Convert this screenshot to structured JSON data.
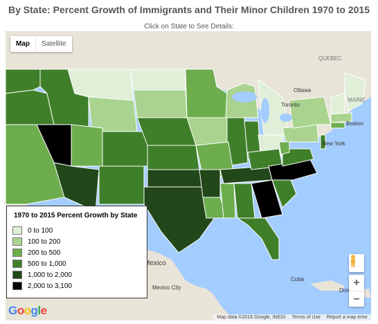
{
  "title": "By State: Percent Growth of Immigrants and Their Minor Children 1970 to 2015",
  "subtitle": "Click on State to See Details:",
  "map_type": {
    "map_label": "Map",
    "satellite_label": "Satellite"
  },
  "legend": {
    "title": "1970 to 2015 Percent Growth by State",
    "items": [
      {
        "label": "0 to 100",
        "color": "#e0efd8"
      },
      {
        "label": "100 to 200",
        "color": "#a9d38e"
      },
      {
        "label": "200 to 500",
        "color": "#6dad4e"
      },
      {
        "label": "500 to 1,000",
        "color": "#3f7f2a"
      },
      {
        "label": "1,000 to 2,000",
        "color": "#22471a"
      },
      {
        "label": "2,000 to 3,100",
        "color": "#000000"
      }
    ]
  },
  "colors": {
    "water": "#a3ccff",
    "land": "#e8e4d8",
    "boundary": "#ffffff"
  },
  "place_labels": {
    "quebec": "QUEBEC",
    "ottawa": "Ottawa",
    "toronto": "Toronto",
    "maine": "MAINE",
    "boston": "Boston",
    "new_york": "New York",
    "mexico": "Mexico",
    "mexico_city": "Mexico City",
    "cuba": "Cuba",
    "dominican": "Domin"
  },
  "controls": {
    "zoom_in": "+",
    "zoom_out": "−",
    "pegman_icon": "pegman-icon"
  },
  "google_logo": "Google",
  "footer": {
    "map_data": "Map data ©2016 Google, INEGI",
    "terms": "Terms of Use",
    "report": "Report a map error"
  }
}
